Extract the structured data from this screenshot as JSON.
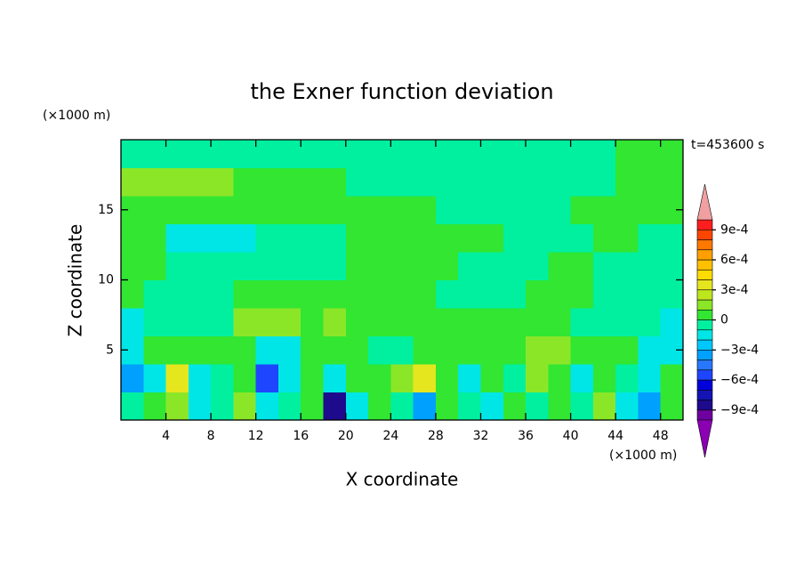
{
  "chart_data": {
    "type": "contour",
    "title": "the Exner function deviation",
    "x_label": "X coordinate",
    "y_label": "Z coordinate",
    "x_unit": "(×1000 m)",
    "y_unit": "(×1000 m)",
    "time_label": "t=453600 s",
    "xlim": [
      0,
      50
    ],
    "ylim": [
      0,
      20
    ],
    "xticks": [
      4,
      8,
      12,
      16,
      20,
      24,
      28,
      32,
      36,
      40,
      44,
      48
    ],
    "yticks": [
      5,
      10,
      15
    ],
    "x": [
      1,
      3,
      5,
      7,
      9,
      11,
      13,
      15,
      17,
      19,
      21,
      23,
      25,
      27,
      29,
      31,
      33,
      35,
      37,
      39,
      41,
      43,
      45,
      47,
      49
    ],
    "z": [
      1,
      3,
      5,
      7,
      9,
      11,
      13,
      15,
      17,
      19
    ],
    "values": [
      [
        -5e-05,
        5e-05,
        0.00015,
        -0.00015,
        -5e-05,
        0.00015,
        -0.00015,
        -5e-05,
        5e-05,
        -0.00085,
        -0.00015,
        5e-05,
        -5e-05,
        -0.00035,
        5e-05,
        -5e-05,
        -0.00015,
        5e-05,
        -5e-05,
        5e-05,
        -5e-05,
        0.00015,
        -0.00015,
        -0.00035,
        5e-05
      ],
      [
        -0.00035,
        -0.00015,
        0.00035,
        -0.00015,
        -5e-05,
        5e-05,
        -0.00055,
        -0.00015,
        5e-05,
        -0.00015,
        5e-05,
        5e-05,
        0.00015,
        0.00035,
        5e-05,
        -0.00015,
        5e-05,
        -5e-05,
        0.00015,
        5e-05,
        -0.00015,
        5e-05,
        -5e-05,
        -0.00015,
        5e-05
      ],
      [
        -0.00015,
        5e-05,
        5e-05,
        5e-05,
        5e-05,
        5e-05,
        -0.00015,
        -0.00015,
        5e-05,
        5e-05,
        5e-05,
        -5e-05,
        -5e-05,
        5e-05,
        5e-05,
        5e-05,
        5e-05,
        5e-05,
        0.00015,
        0.00015,
        5e-05,
        5e-05,
        5e-05,
        -0.00015,
        -0.00015
      ],
      [
        -0.00015,
        -5e-05,
        -5e-05,
        -5e-05,
        -5e-05,
        0.00015,
        0.00015,
        0.00015,
        5e-05,
        0.00015,
        5e-05,
        5e-05,
        5e-05,
        5e-05,
        5e-05,
        5e-05,
        5e-05,
        5e-05,
        5e-05,
        5e-05,
        -5e-05,
        -5e-05,
        -5e-05,
        -5e-05,
        -0.00015
      ],
      [
        5e-05,
        -5e-05,
        -5e-05,
        -5e-05,
        -5e-05,
        5e-05,
        5e-05,
        5e-05,
        5e-05,
        5e-05,
        5e-05,
        5e-05,
        5e-05,
        5e-05,
        -5e-05,
        -5e-05,
        -5e-05,
        -5e-05,
        5e-05,
        5e-05,
        5e-05,
        -5e-05,
        -5e-05,
        -5e-05,
        -5e-05
      ],
      [
        5e-05,
        5e-05,
        -5e-05,
        -5e-05,
        -5e-05,
        -5e-05,
        -5e-05,
        -5e-05,
        -5e-05,
        -5e-05,
        5e-05,
        5e-05,
        5e-05,
        5e-05,
        5e-05,
        -5e-05,
        -5e-05,
        -5e-05,
        -5e-05,
        5e-05,
        5e-05,
        -5e-05,
        -5e-05,
        -5e-05,
        -5e-05
      ],
      [
        5e-05,
        5e-05,
        -0.00015,
        -0.00015,
        -0.00015,
        -0.00015,
        -5e-05,
        -5e-05,
        -5e-05,
        -5e-05,
        5e-05,
        5e-05,
        5e-05,
        5e-05,
        5e-05,
        5e-05,
        5e-05,
        -5e-05,
        -5e-05,
        -5e-05,
        -5e-05,
        5e-05,
        5e-05,
        -5e-05,
        -5e-05
      ],
      [
        5e-05,
        5e-05,
        5e-05,
        5e-05,
        5e-05,
        5e-05,
        5e-05,
        5e-05,
        5e-05,
        5e-05,
        5e-05,
        5e-05,
        5e-05,
        5e-05,
        -5e-05,
        -5e-05,
        -5e-05,
        -5e-05,
        -5e-05,
        -5e-05,
        5e-05,
        5e-05,
        5e-05,
        5e-05,
        5e-05
      ],
      [
        0.00015,
        0.00015,
        0.00015,
        0.00015,
        0.00015,
        5e-05,
        5e-05,
        5e-05,
        5e-05,
        5e-05,
        -5e-05,
        -5e-05,
        -5e-05,
        -5e-05,
        -5e-05,
        -5e-05,
        -5e-05,
        -5e-05,
        -5e-05,
        -5e-05,
        -5e-05,
        -5e-05,
        5e-05,
        5e-05,
        5e-05
      ],
      [
        -5e-05,
        -5e-05,
        -5e-05,
        -5e-05,
        -5e-05,
        -5e-05,
        -5e-05,
        -5e-05,
        -5e-05,
        -5e-05,
        -5e-05,
        -5e-05,
        -5e-05,
        -5e-05,
        -5e-05,
        -5e-05,
        -5e-05,
        -5e-05,
        -5e-05,
        -5e-05,
        -5e-05,
        -5e-05,
        5e-05,
        5e-05,
        5e-05
      ]
    ],
    "levels": [
      -0.001,
      -0.0009,
      -0.0008,
      -0.0007,
      -0.0006,
      -0.0005,
      -0.0004,
      -0.0003,
      -0.0002,
      -0.0001,
      0,
      0.0001,
      0.0002,
      0.0003,
      0.0004,
      0.0005,
      0.0006,
      0.0007,
      0.0008,
      0.0009,
      0.001
    ],
    "colors": [
      "#6e00a0",
      "#1e0a8c",
      "#1414b4",
      "#0000dc",
      "#1e46ff",
      "#2878ff",
      "#00a0ff",
      "#00c8ff",
      "#00e6e6",
      "#00f0a0",
      "#32e632",
      "#8ce628",
      "#bee61e",
      "#e6e61e",
      "#ffdc00",
      "#ffc000",
      "#ffa000",
      "#ff7800",
      "#ff4600",
      "#ff1e1e"
    ],
    "under_color": "#8c00b4",
    "over_color": "#f0a0a0",
    "colorbar_ticks": [
      {
        "value": 0.0009,
        "label": "9e-4"
      },
      {
        "value": 0.0006,
        "label": "6e-4"
      },
      {
        "value": 0.0003,
        "label": "3e-4"
      },
      0,
      {
        "value": -0.0003,
        "label": "−3e-4"
      },
      {
        "value": -0.0006,
        "label": "−6e-4"
      },
      {
        "value": -0.0009,
        "label": "−9e-4"
      }
    ]
  }
}
